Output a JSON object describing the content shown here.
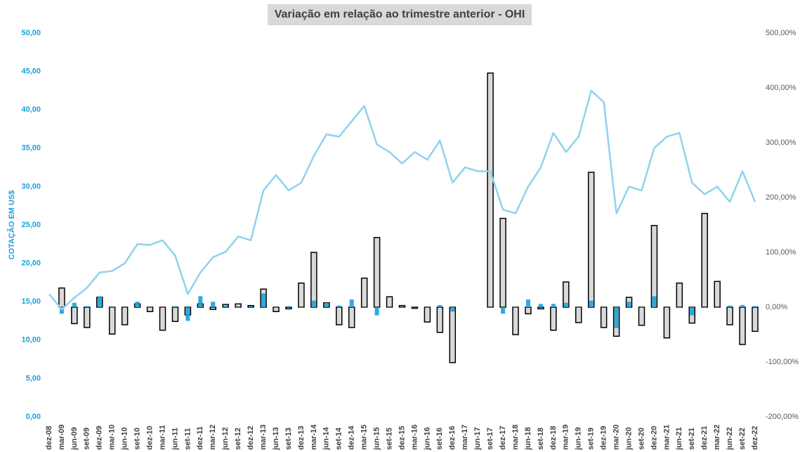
{
  "chart_data": {
    "type": "combo",
    "title": "Variação em relação ao trimestre anterior - OHI",
    "ylabel": "COTAÇÃO EM US$",
    "grid": false,
    "categories": [
      "dez-08",
      "mar-09",
      "jun-09",
      "set-09",
      "dez-09",
      "mar-10",
      "jun-10",
      "set-10",
      "dez-10",
      "mar-11",
      "jun-11",
      "set-11",
      "dez-11",
      "mar-12",
      "jun-12",
      "set-12",
      "dez-12",
      "mar-13",
      "jun-13",
      "set-13",
      "dez-13",
      "mar-14",
      "jun-14",
      "set-14",
      "dez-14",
      "mar-15",
      "jun-15",
      "set-15",
      "dez-15",
      "mar-16",
      "jun-16",
      "set-16",
      "dez-16",
      "mar-17",
      "jun-17",
      "set-17",
      "dez-17",
      "mar-18",
      "jun-18",
      "set-18",
      "dez-18",
      "mar-19",
      "jun-19",
      "set-19",
      "dez-19",
      "mar-20",
      "jun-20",
      "set-20",
      "dez-20",
      "mar-21",
      "jun-21",
      "set-21",
      "dez-21",
      "mar-22",
      "jun-22",
      "set-22",
      "dez-22"
    ],
    "ylim": [
      0,
      50
    ],
    "yticks": [
      {
        "value": 0,
        "label": "0,00"
      },
      {
        "value": 5,
        "label": "5,00"
      },
      {
        "value": 10,
        "label": "10,00"
      },
      {
        "value": 15,
        "label": "15,00"
      },
      {
        "value": 20,
        "label": "20,00"
      },
      {
        "value": 25,
        "label": "25,00"
      },
      {
        "value": 30,
        "label": "30,00"
      },
      {
        "value": 35,
        "label": "35,00"
      },
      {
        "value": 40,
        "label": "40,00"
      },
      {
        "value": 45,
        "label": "45,00"
      },
      {
        "value": 50,
        "label": "50,00"
      }
    ],
    "y2lim": [
      -200,
      500
    ],
    "y2ticks": [
      {
        "value": -200,
        "label": "-200,00%"
      },
      {
        "value": -100,
        "label": "-100,00%"
      },
      {
        "value": 0,
        "label": "0,00%"
      },
      {
        "value": 100,
        "label": "100,00%"
      },
      {
        "value": 200,
        "label": "200,00%"
      },
      {
        "value": 300,
        "label": "300,00%"
      },
      {
        "value": 400,
        "label": "400,00%"
      },
      {
        "value": 500,
        "label": "500,00%"
      }
    ],
    "series": [
      {
        "type": "bar",
        "axis": "y2",
        "color": "#d9d9d9",
        "edgecolor": "#000000",
        "values": [
          null,
          35,
          -30,
          -37,
          18,
          -49,
          -32,
          6,
          -8,
          -42,
          -26,
          -14,
          6,
          -4,
          5,
          6,
          3,
          33,
          -8,
          -3,
          44,
          100,
          8,
          -32,
          -37,
          53,
          127,
          19,
          3,
          -2,
          -27,
          -46,
          -101,
          null,
          null,
          427,
          162,
          -50,
          -12,
          -3,
          -42,
          46,
          -28,
          246,
          -37,
          -53,
          18,
          -33,
          149,
          -56,
          44,
          -29,
          171,
          47,
          -32,
          -68,
          -44
        ]
      },
      {
        "type": "bar",
        "axis": "y2",
        "color": "#1ba1dc",
        "values": [
          null,
          -12,
          8,
          2,
          20,
          0,
          0,
          10,
          0,
          0,
          2,
          -25,
          20,
          10,
          3,
          0,
          2,
          25,
          0,
          2,
          0,
          12,
          8,
          3,
          14,
          0,
          -15,
          0,
          0,
          0,
          0,
          4,
          -8,
          null,
          null,
          0,
          -12,
          0,
          14,
          6,
          6,
          8,
          0,
          12,
          0,
          -38,
          10,
          0,
          20,
          0,
          0,
          -15,
          0,
          0,
          3,
          4,
          2
        ]
      },
      {
        "type": "line",
        "axis": "y",
        "color": "#8fd3ee",
        "values": [
          16.0,
          14.0,
          15.5,
          16.8,
          18.8,
          19.0,
          20.0,
          22.5,
          22.4,
          23.0,
          21.0,
          16.0,
          18.8,
          20.8,
          21.5,
          23.5,
          23.0,
          29.5,
          31.5,
          29.5,
          30.5,
          34.0,
          36.8,
          36.5,
          38.5,
          40.5,
          35.5,
          34.5,
          33.0,
          34.5,
          33.5,
          36.0,
          30.5,
          32.5,
          32.0,
          32.0,
          27.0,
          26.5,
          30.0,
          32.5,
          37.0,
          34.5,
          36.5,
          42.5,
          41.0,
          26.5,
          30.0,
          29.5,
          35.0,
          36.5,
          37.0,
          30.5,
          29.0,
          30.0,
          28.0,
          32.0,
          28.0
        ]
      }
    ]
  }
}
